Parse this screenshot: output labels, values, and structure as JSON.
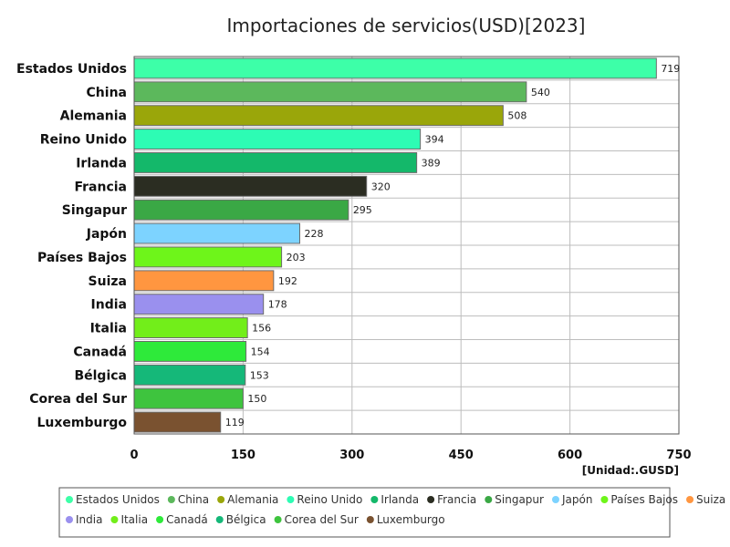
{
  "chart_data": {
    "type": "bar",
    "orientation": "horizontal",
    "title": "Importaciones de servicios(USD)[2023]",
    "unit_label": "[Unidad:.GUSD]",
    "xlim": [
      0,
      750
    ],
    "x_ticks": [
      0,
      150,
      300,
      450,
      600,
      750
    ],
    "grid": true,
    "legend_position": "bottom",
    "categories": [
      "Estados Unidos",
      "China",
      "Alemania",
      "Reino Unido",
      "Irlanda",
      "Francia",
      "Singapur",
      "Japón",
      "Países Bajos",
      "Suiza",
      "India",
      "Italia",
      "Canadá",
      "Bélgica",
      "Corea del Sur",
      "Luxemburgo"
    ],
    "values": [
      719,
      540,
      508,
      394,
      389,
      320,
      295,
      228,
      203,
      192,
      178,
      156,
      154,
      153,
      150,
      119
    ],
    "colors": [
      "#3dffa8",
      "#5cb85c",
      "#9aa60a",
      "#2dfcb4",
      "#14b86a",
      "#2b2d22",
      "#3aa845",
      "#7dd3ff",
      "#6ef51a",
      "#ff9640",
      "#9a90ee",
      "#72ee1a",
      "#2eea3a",
      "#15b879",
      "#3ec43e",
      "#7a5230"
    ]
  }
}
